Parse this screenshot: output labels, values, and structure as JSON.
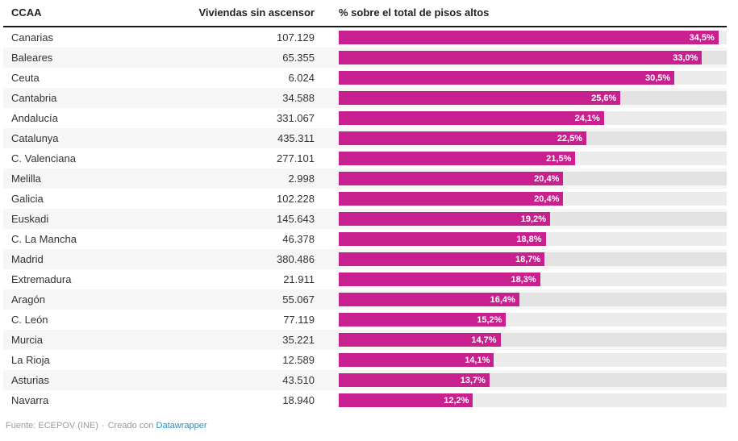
{
  "chart_data": {
    "type": "bar",
    "orientation": "horizontal",
    "title": "",
    "columns": [
      "CCAA",
      "Viviendas sin ascensor",
      "% sobre el total de pisos altos"
    ],
    "categories": [
      "Canarias",
      "Baleares",
      "Ceuta",
      "Cantabria",
      "Andalucía",
      "Catalunya",
      "C. Valenciana",
      "Melilla",
      "Galicia",
      "Euskadi",
      "C. La Mancha",
      "Madrid",
      "Extremadura",
      "Aragón",
      "C. León",
      "Murcia",
      "La Rioja",
      "Asturias",
      "Navarra"
    ],
    "series": [
      {
        "name": "Viviendas sin ascensor",
        "values": [
          107129,
          65355,
          6024,
          34588,
          331067,
          435311,
          277101,
          2998,
          102228,
          145643,
          46378,
          380486,
          21911,
          55067,
          77119,
          35221,
          12589,
          43510,
          18940
        ]
      },
      {
        "name": "% sobre el total de pisos altos",
        "values": [
          34.5,
          33.0,
          30.5,
          25.6,
          24.1,
          22.5,
          21.5,
          20.4,
          20.4,
          19.2,
          18.8,
          18.7,
          18.3,
          16.4,
          15.2,
          14.7,
          14.1,
          13.7,
          12.2
        ]
      }
    ],
    "xlim": [
      0,
      35.25
    ],
    "grid": false,
    "legend": "none",
    "value_labels": "inside-bar-right"
  },
  "header": {
    "col_ccaa": "CCAA",
    "col_viviendas": "Viviendas sin ascensor",
    "col_pct": "% sobre el total de pisos altos"
  },
  "rows": [
    {
      "ccaa": "Canarias",
      "viviendas": "107.129",
      "pct": "34,5%",
      "value": 34.5
    },
    {
      "ccaa": "Baleares",
      "viviendas": "65.355",
      "pct": "33,0%",
      "value": 33.0
    },
    {
      "ccaa": "Ceuta",
      "viviendas": "6.024",
      "pct": "30,5%",
      "value": 30.5
    },
    {
      "ccaa": "Cantabria",
      "viviendas": "34.588",
      "pct": "25,6%",
      "value": 25.6
    },
    {
      "ccaa": "Andalucía",
      "viviendas": "331.067",
      "pct": "24,1%",
      "value": 24.1
    },
    {
      "ccaa": "Catalunya",
      "viviendas": "435.311",
      "pct": "22,5%",
      "value": 22.5
    },
    {
      "ccaa": "C. Valenciana",
      "viviendas": "277.101",
      "pct": "21,5%",
      "value": 21.5
    },
    {
      "ccaa": "Melilla",
      "viviendas": "2.998",
      "pct": "20,4%",
      "value": 20.4
    },
    {
      "ccaa": "Galicia",
      "viviendas": "102.228",
      "pct": "20,4%",
      "value": 20.4
    },
    {
      "ccaa": "Euskadi",
      "viviendas": "145.643",
      "pct": "19,2%",
      "value": 19.2
    },
    {
      "ccaa": "C. La Mancha",
      "viviendas": "46.378",
      "pct": "18,8%",
      "value": 18.8
    },
    {
      "ccaa": "Madrid",
      "viviendas": "380.486",
      "pct": "18,7%",
      "value": 18.7
    },
    {
      "ccaa": "Extremadura",
      "viviendas": "21.911",
      "pct": "18,3%",
      "value": 18.3
    },
    {
      "ccaa": "Aragón",
      "viviendas": "55.067",
      "pct": "16,4%",
      "value": 16.4
    },
    {
      "ccaa": "C. León",
      "viviendas": "77.119",
      "pct": "15,2%",
      "value": 15.2
    },
    {
      "ccaa": "Murcia",
      "viviendas": "35.221",
      "pct": "14,7%",
      "value": 14.7
    },
    {
      "ccaa": "La Rioja",
      "viviendas": "12.589",
      "pct": "14,1%",
      "value": 14.1
    },
    {
      "ccaa": "Asturias",
      "viviendas": "43.510",
      "pct": "13,7%",
      "value": 13.7
    },
    {
      "ccaa": "Navarra",
      "viviendas": "18.940",
      "pct": "12,2%",
      "value": 12.2
    }
  ],
  "footer": {
    "source": "Fuente: ECEPOV (INE)",
    "separator": "·",
    "credit": "Creado con",
    "link_label": "Datawrapper"
  },
  "colors": {
    "bar": "#c9208f",
    "track": "rgba(0,0,0,0.075)",
    "stripe": "#f6f6f6",
    "header_rule": "#1a1a1a",
    "link": "#2290d0"
  }
}
